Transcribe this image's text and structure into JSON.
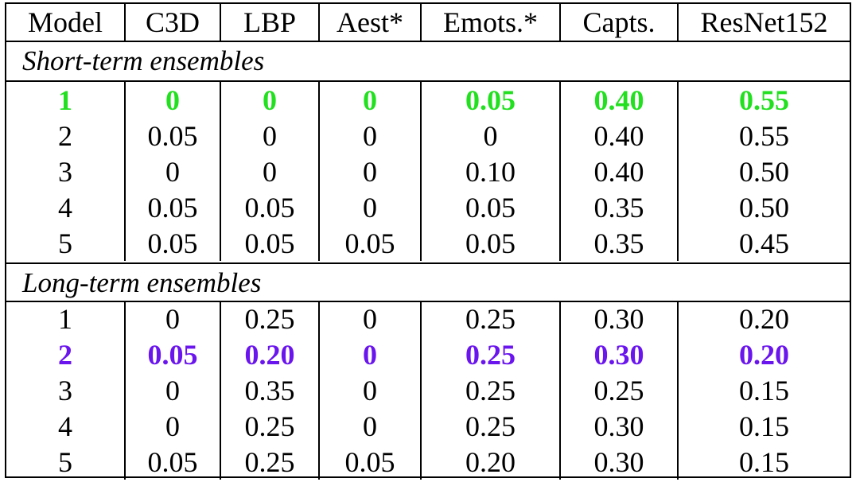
{
  "headers": [
    "Model",
    "C3D",
    "LBP",
    "Aest*",
    "Emots.*",
    "Capts.",
    "ResNet152"
  ],
  "sections": [
    {
      "title": "Short-term ensembles",
      "rows": [
        [
          "1",
          "0",
          "0",
          "0",
          "0.05",
          "0.40",
          "0.55"
        ],
        [
          "2",
          "0.05",
          "0",
          "0",
          "0",
          "0.40",
          "0.55"
        ],
        [
          "3",
          "0",
          "0",
          "0",
          "0.10",
          "0.40",
          "0.50"
        ],
        [
          "4",
          "0.05",
          "0.05",
          "0",
          "0.05",
          "0.35",
          "0.50"
        ],
        [
          "5",
          "0.05",
          "0.05",
          "0.05",
          "0.05",
          "0.35",
          "0.45"
        ]
      ]
    },
    {
      "title": "Long-term ensembles",
      "rows": [
        [
          "1",
          "0",
          "0.25",
          "0",
          "0.25",
          "0.30",
          "0.20"
        ],
        [
          "2",
          "0.05",
          "0.20",
          "0",
          "0.25",
          "0.30",
          "0.20"
        ],
        [
          "3",
          "0",
          "0.35",
          "0",
          "0.25",
          "0.25",
          "0.15"
        ],
        [
          "4",
          "0",
          "0.25",
          "0",
          "0.25",
          "0.30",
          "0.15"
        ],
        [
          "5",
          "0.05",
          "0.25",
          "0.05",
          "0.20",
          "0.30",
          "0.15"
        ]
      ]
    }
  ],
  "highlights": {
    "short_best_color": "#22e01f",
    "long_best_color": "#6a14ee"
  }
}
